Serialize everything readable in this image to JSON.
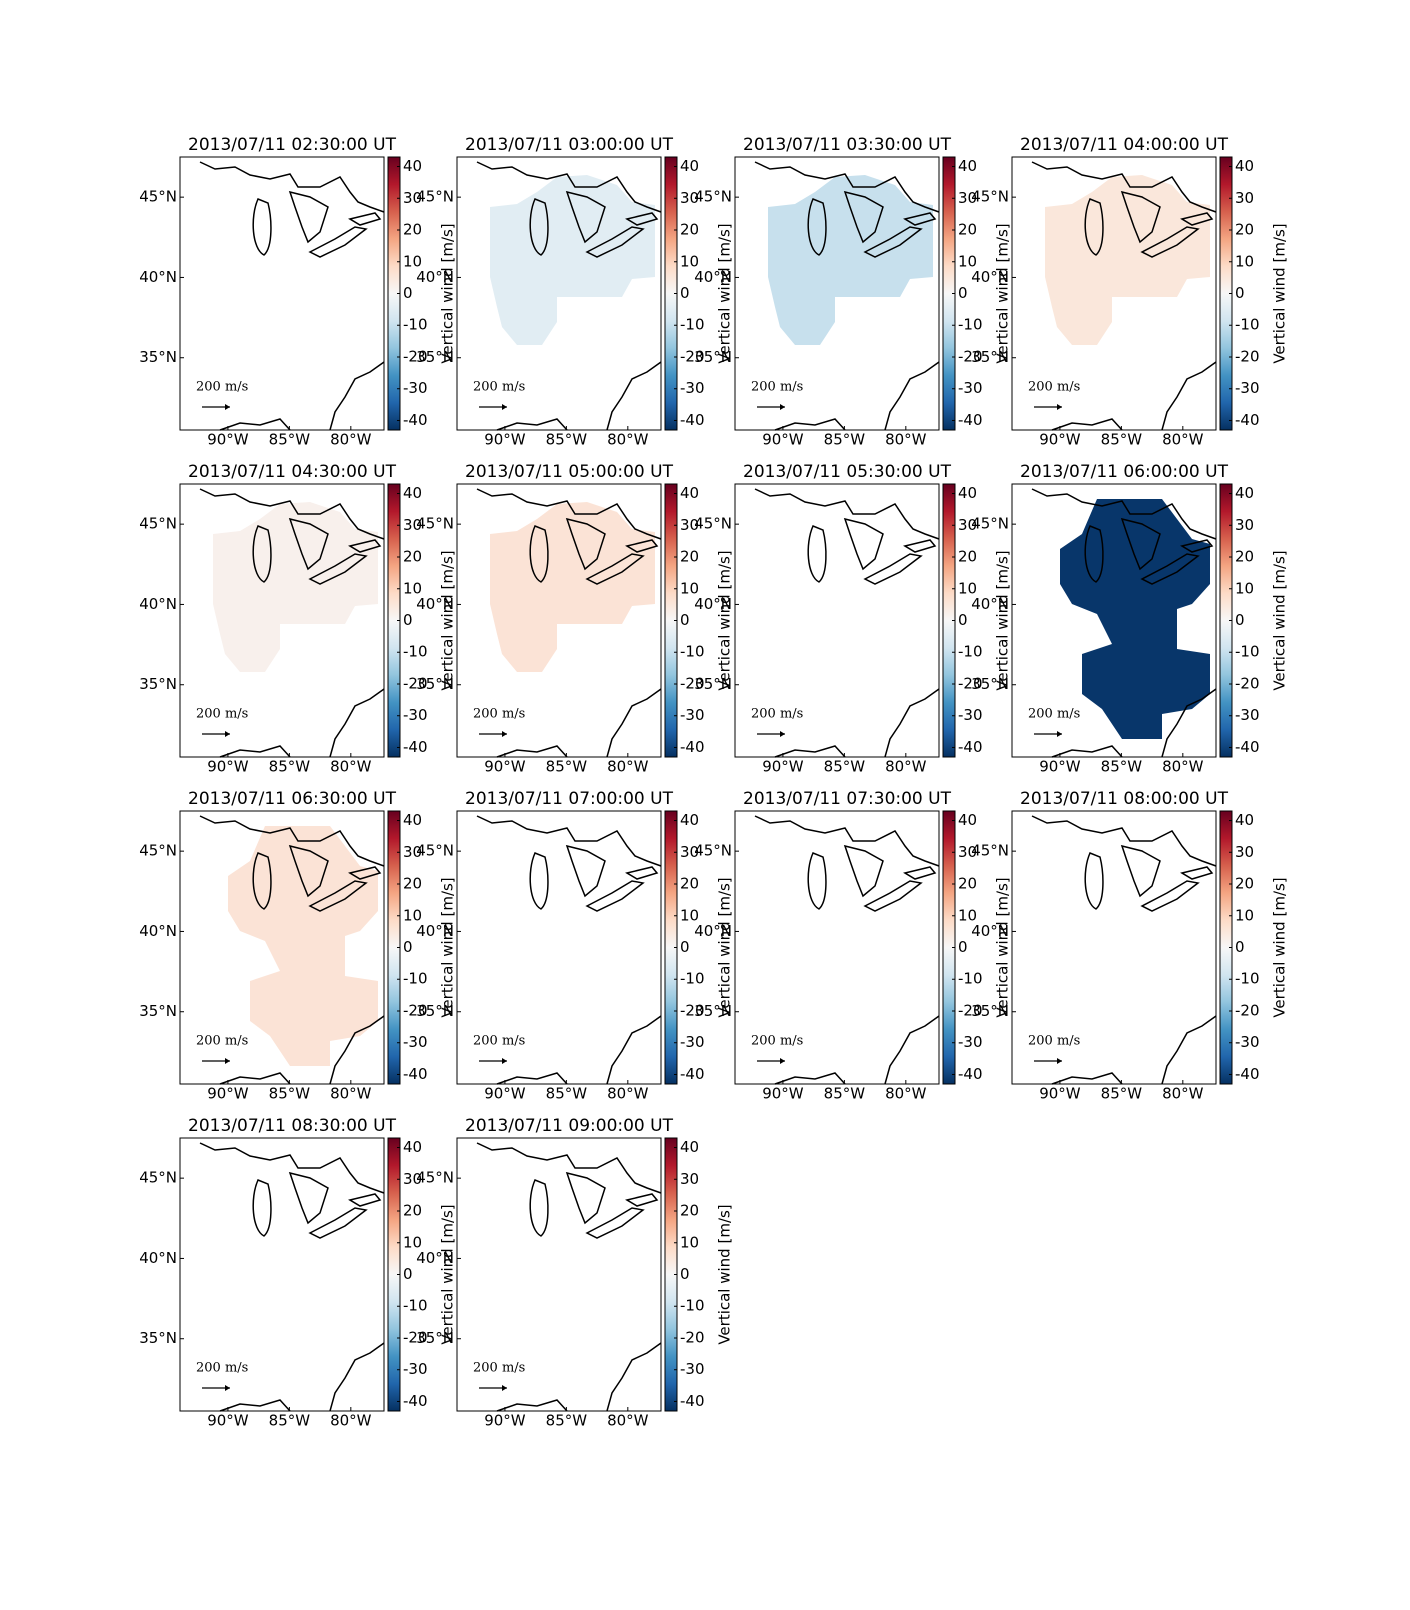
{
  "chart_data": {
    "type": "map-grid",
    "panels": [
      {
        "title": "2013/07/11 02:30:00 UT",
        "field_value": null
      },
      {
        "title": "2013/07/11 03:00:00 UT",
        "field_value": -5
      },
      {
        "title": "2013/07/11 03:30:00 UT",
        "field_value": -10
      },
      {
        "title": "2013/07/11 04:00:00 UT",
        "field_value": 5
      },
      {
        "title": "2013/07/11 04:30:00 UT",
        "field_value": 2
      },
      {
        "title": "2013/07/11 05:00:00 UT",
        "field_value": 6
      },
      {
        "title": "2013/07/11 05:30:00 UT",
        "field_value": null
      },
      {
        "title": "2013/07/11 06:00:00 UT",
        "field_value": -42
      },
      {
        "title": "2013/07/11 06:30:00 UT",
        "field_value": 6
      },
      {
        "title": "2013/07/11 07:00:00 UT",
        "field_value": null
      },
      {
        "title": "2013/07/11 07:30:00 UT",
        "field_value": null
      },
      {
        "title": "2013/07/11 08:00:00 UT",
        "field_value": null
      },
      {
        "title": "2013/07/11 08:30:00 UT",
        "field_value": null
      },
      {
        "title": "2013/07/11 09:00:00 UT",
        "field_value": null
      }
    ],
    "xlim": [
      -93.9,
      -77.3
    ],
    "ylim": [
      30.5,
      47.5
    ],
    "xticks": [
      {
        "value": -90,
        "label": "90°W"
      },
      {
        "value": -85,
        "label": "85°W"
      },
      {
        "value": -80,
        "label": "80°W"
      }
    ],
    "yticks": [
      {
        "value": 35,
        "label": "35°N"
      },
      {
        "value": 40,
        "label": "40°N"
      },
      {
        "value": 45,
        "label": "45°N"
      }
    ],
    "colorbar": {
      "label": "Vertical wind [m/s]",
      "clim": [
        -43,
        43
      ],
      "ticks": [
        -40,
        -30,
        -20,
        -10,
        0,
        10,
        20,
        30,
        40
      ],
      "colormap": [
        "#053061",
        "#2166ac",
        "#4393c3",
        "#92c5de",
        "#d1e5f0",
        "#f7f7f7",
        "#fddbc7",
        "#f4a582",
        "#d6604d",
        "#b2182b",
        "#67001f"
      ]
    },
    "quiver_key": "200 m/s"
  }
}
